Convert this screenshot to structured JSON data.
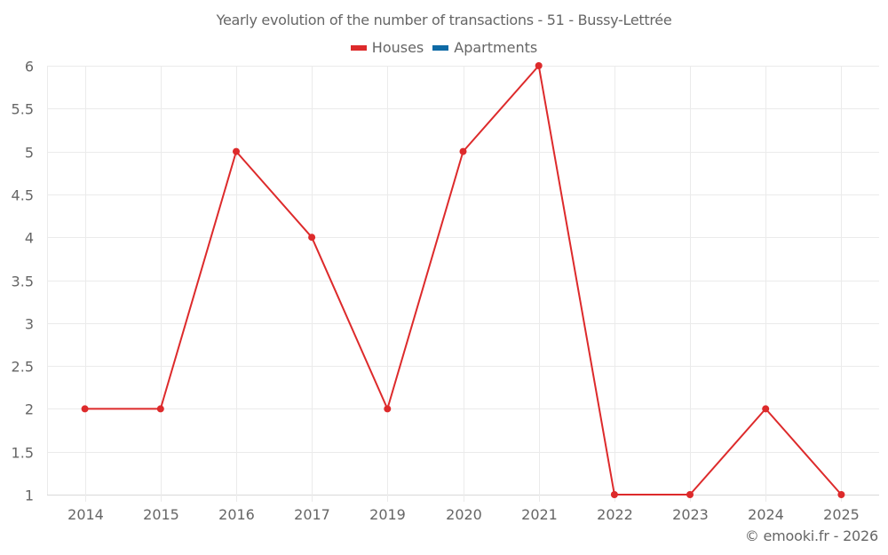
{
  "chart_data": {
    "type": "line",
    "title": "Yearly evolution of the number of transactions - 51 - Bussy-Lettrée",
    "categories": [
      "2014",
      "2015",
      "2016",
      "2017",
      "2019",
      "2020",
      "2021",
      "2022",
      "2023",
      "2024",
      "2025"
    ],
    "series": [
      {
        "name": "Houses",
        "color": "#dd2a2b",
        "values": [
          2,
          2,
          5,
          4,
          2,
          5,
          6,
          1,
          1,
          2,
          1
        ]
      },
      {
        "name": "Apartments",
        "color": "#0e6aa5",
        "values": []
      }
    ],
    "xlabel": "",
    "ylabel": "",
    "ylim": [
      1,
      6
    ],
    "yticks": [
      "1",
      "1.5",
      "2",
      "2.5",
      "3",
      "3.5",
      "4",
      "4.5",
      "5",
      "5.5",
      "6"
    ],
    "grid": true,
    "legend_position": "top"
  },
  "header": {
    "title": "Yearly evolution of the number of transactions - 51 - Bussy-Lettrée"
  },
  "legend": {
    "items": [
      {
        "label": "Houses",
        "color": "#dd2a2b"
      },
      {
        "label": "Apartments",
        "color": "#0e6aa5"
      }
    ]
  },
  "footer": {
    "credit": "© emooki.fr - 2026"
  },
  "colors": {
    "text": "#666666",
    "grid": "#ebebeb",
    "axis": "#d9d9d9"
  }
}
